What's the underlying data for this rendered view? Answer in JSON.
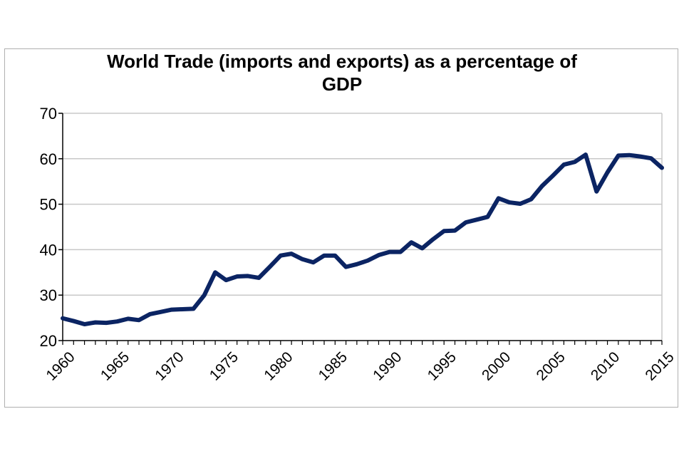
{
  "chart_data": {
    "type": "line",
    "title_lines": [
      "World Trade (imports and exports) as a percentage of",
      "GDP"
    ],
    "xlabel": "",
    "ylabel": "",
    "ylim": [
      20,
      70
    ],
    "yticks": [
      20,
      30,
      40,
      50,
      60,
      70
    ],
    "xlim": [
      1960,
      2015
    ],
    "xticks": [
      1960,
      1965,
      1970,
      1975,
      1980,
      1985,
      1990,
      1995,
      2000,
      2005,
      2010,
      2015
    ],
    "grid": true,
    "legend": "none",
    "series": [
      {
        "name": "World Trade % of GDP",
        "color": "#0b2463",
        "x": [
          1960,
          1961,
          1962,
          1963,
          1964,
          1965,
          1966,
          1967,
          1968,
          1969,
          1970,
          1971,
          1972,
          1973,
          1974,
          1975,
          1976,
          1977,
          1978,
          1979,
          1980,
          1981,
          1982,
          1983,
          1984,
          1985,
          1986,
          1987,
          1988,
          1989,
          1990,
          1991,
          1992,
          1993,
          1994,
          1995,
          1996,
          1997,
          1998,
          1999,
          2000,
          2001,
          2002,
          2003,
          2004,
          2005,
          2006,
          2007,
          2008,
          2009,
          2010,
          2011,
          2012,
          2013,
          2014,
          2015
        ],
        "values": [
          24.9,
          24.3,
          23.6,
          24.0,
          23.9,
          24.2,
          24.8,
          24.5,
          25.8,
          26.3,
          26.8,
          26.9,
          27.0,
          30.0,
          35.0,
          33.3,
          34.1,
          34.2,
          33.8,
          36.2,
          38.7,
          39.1,
          37.9,
          37.2,
          38.7,
          38.7,
          36.2,
          36.8,
          37.6,
          38.8,
          39.5,
          39.5,
          41.6,
          40.3,
          42.3,
          44.1,
          44.2,
          46.0,
          46.6,
          47.2,
          51.3,
          50.4,
          50.1,
          51.1,
          54.0,
          56.3,
          58.7,
          59.3,
          60.9,
          52.8,
          57.0,
          60.7,
          60.8,
          60.5,
          60.1,
          58.0
        ]
      }
    ]
  }
}
